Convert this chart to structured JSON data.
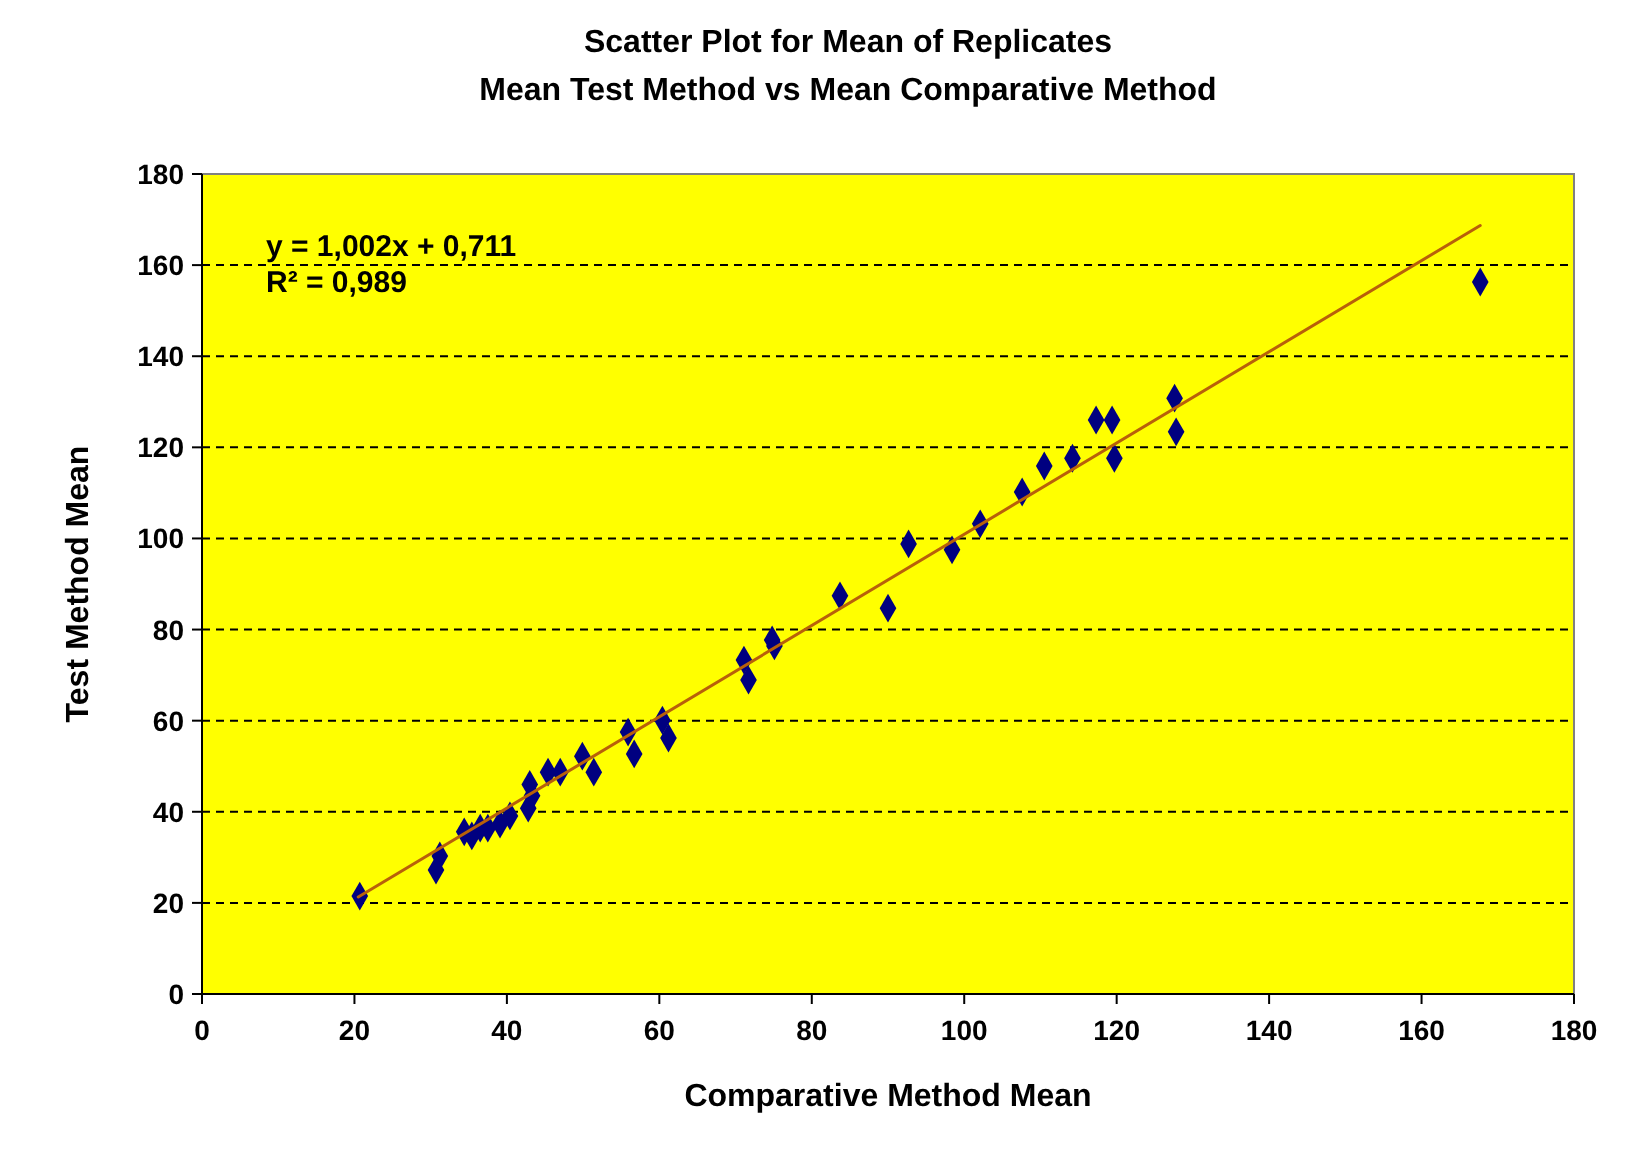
{
  "chart_data": {
    "type": "scatter",
    "title": "Scatter Plot for Mean of Replicates",
    "subtitle": "Mean Test Method vs Mean Comparative Method",
    "xlabel": "Comparative Method Mean",
    "ylabel": "Test Method Mean",
    "xlim": [
      0,
      180
    ],
    "xticks": [
      0,
      20,
      40,
      60,
      80,
      100,
      120,
      140,
      160,
      180
    ],
    "ylim": [
      0,
      180
    ],
    "yticks": [
      0,
      20,
      40,
      60,
      80,
      100,
      120,
      140,
      160,
      180
    ],
    "grid": "y",
    "annotations": [
      "y = 1,002x + 0,711",
      "R² = 0,989"
    ],
    "series": [
      {
        "marker": "diamond",
        "color": "#000080",
        "x": [
          20.7,
          30.7,
          31.2,
          34.4,
          35.4,
          36.5,
          37.5,
          39.1,
          40.4,
          42.8,
          43.3,
          43,
          45.4,
          47,
          49.9,
          51.4,
          55.9,
          56.7,
          60.4,
          61.2,
          71.1,
          71.7,
          74.8,
          75.1,
          83.7,
          90,
          92.7,
          98.4,
          102.1,
          107.6,
          110.5,
          114.2,
          117.3,
          119.4,
          119.7,
          127.6,
          127.8,
          167.7
        ],
        "values": [
          21.5,
          27.2,
          30.3,
          35.6,
          34.7,
          36.4,
          36.4,
          37.3,
          39.1,
          40.8,
          43.5,
          46,
          48.7,
          48.7,
          52.2,
          48.7,
          57.5,
          52.7,
          60.1,
          56.2,
          73.3,
          68.9,
          77.7,
          76.4,
          87.4,
          84.7,
          98.8,
          97.5,
          103.2,
          110.2,
          115.9,
          117.6,
          126,
          126,
          117.6,
          130.8,
          123.4,
          156.3
        ]
      },
      {
        "type": "line",
        "color": "#b8600a",
        "x": [
          20.5,
          167.7
        ],
        "values": [
          21.3,
          168.7
        ]
      }
    ]
  }
}
